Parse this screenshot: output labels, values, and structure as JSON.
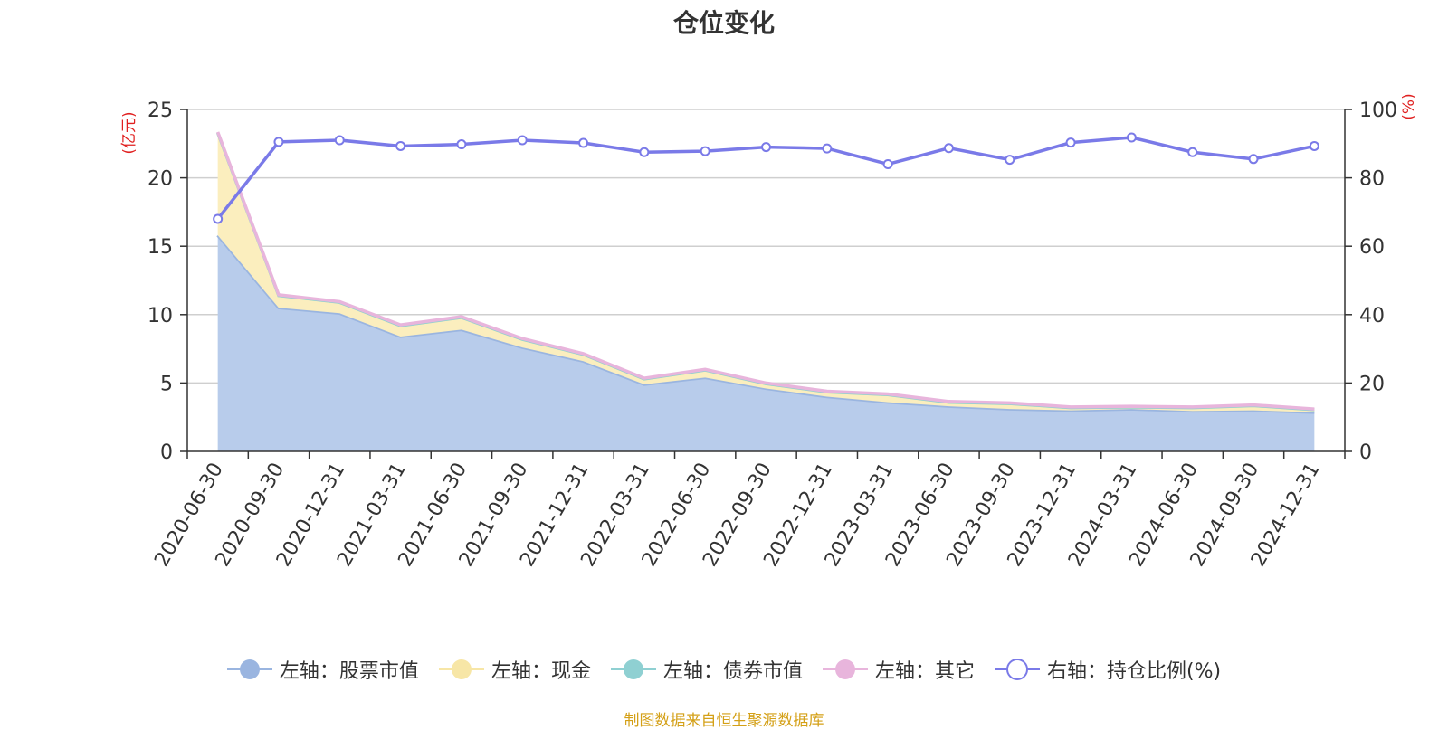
{
  "title": "仓位变化",
  "source_note": "制图数据来自恒生聚源数据库",
  "legend": [
    {
      "label": "左轴：股票市值",
      "color": "#9ab5e0",
      "icon": "filled-circle"
    },
    {
      "label": "左轴：现金",
      "color": "#f7e6a6",
      "icon": "filled-circle"
    },
    {
      "label": "左轴：债券市值",
      "color": "#8fd0d2",
      "icon": "filled-circle"
    },
    {
      "label": "左轴：其它",
      "color": "#e8b5dc",
      "icon": "filled-circle"
    },
    {
      "label": "右轴：持仓比例(%)",
      "color": "#7a7ae8",
      "icon": "hollow-circle"
    }
  ],
  "chart_data": {
    "type": "area",
    "title": "仓位变化",
    "y_left_label": "(亿元)",
    "y_right_label": "(%)",
    "y_left_range": [
      0,
      25
    ],
    "y_right_range": [
      0,
      100
    ],
    "y_left_ticks": [
      "0",
      "5",
      "10",
      "15",
      "20",
      "25"
    ],
    "y_right_ticks": [
      "0",
      "20",
      "40",
      "60",
      "80",
      "100"
    ],
    "grid": true,
    "categories": [
      "2020-06-30",
      "2020-09-30",
      "2020-12-31",
      "2021-03-31",
      "2021-06-30",
      "2021-09-30",
      "2021-12-31",
      "2022-03-31",
      "2022-06-30",
      "2022-09-30",
      "2022-12-31",
      "2023-03-31",
      "2023-06-30",
      "2023-09-30",
      "2023-12-31",
      "2024-03-31",
      "2024-06-30",
      "2024-09-30",
      "2024-12-31"
    ],
    "stacked_series": [
      {
        "name": "左轴：股票市值",
        "color": "#9ab5e0",
        "values": [
          15.8,
          10.5,
          10.1,
          8.4,
          8.9,
          7.6,
          6.6,
          4.9,
          5.4,
          4.6,
          4.0,
          3.6,
          3.3,
          3.1,
          3.0,
          3.1,
          2.95,
          3.0,
          2.85
        ]
      },
      {
        "name": "左轴：现金",
        "color": "#f7e6a6",
        "values": [
          7.5,
          0.9,
          0.8,
          0.8,
          0.9,
          0.6,
          0.5,
          0.4,
          0.55,
          0.35,
          0.35,
          0.55,
          0.3,
          0.4,
          0.2,
          0.15,
          0.25,
          0.35,
          0.2
        ]
      },
      {
        "name": "左轴：债券市值",
        "color": "#8fd0d2",
        "values": [
          0,
          0,
          0,
          0,
          0,
          0,
          0,
          0,
          0,
          0,
          0,
          0,
          0,
          0,
          0,
          0,
          0,
          0,
          0
        ]
      },
      {
        "name": "左轴：其它",
        "color": "#e8b5dc",
        "values": [
          0.05,
          0.05,
          0.05,
          0.05,
          0.05,
          0.05,
          0.05,
          0.05,
          0.05,
          0.05,
          0.05,
          0.05,
          0.05,
          0.05,
          0.05,
          0.05,
          0.05,
          0.05,
          0.05
        ]
      }
    ],
    "line_series": {
      "name": "右轴：持仓比例(%)",
      "color": "#7a7ae8",
      "values": [
        68,
        90.5,
        91,
        89.3,
        89.8,
        91,
        90.2,
        87.5,
        87.8,
        89,
        88.6,
        84,
        88.7,
        85.3,
        90.3,
        91.8,
        87.5,
        85.5,
        89.3
      ]
    }
  }
}
